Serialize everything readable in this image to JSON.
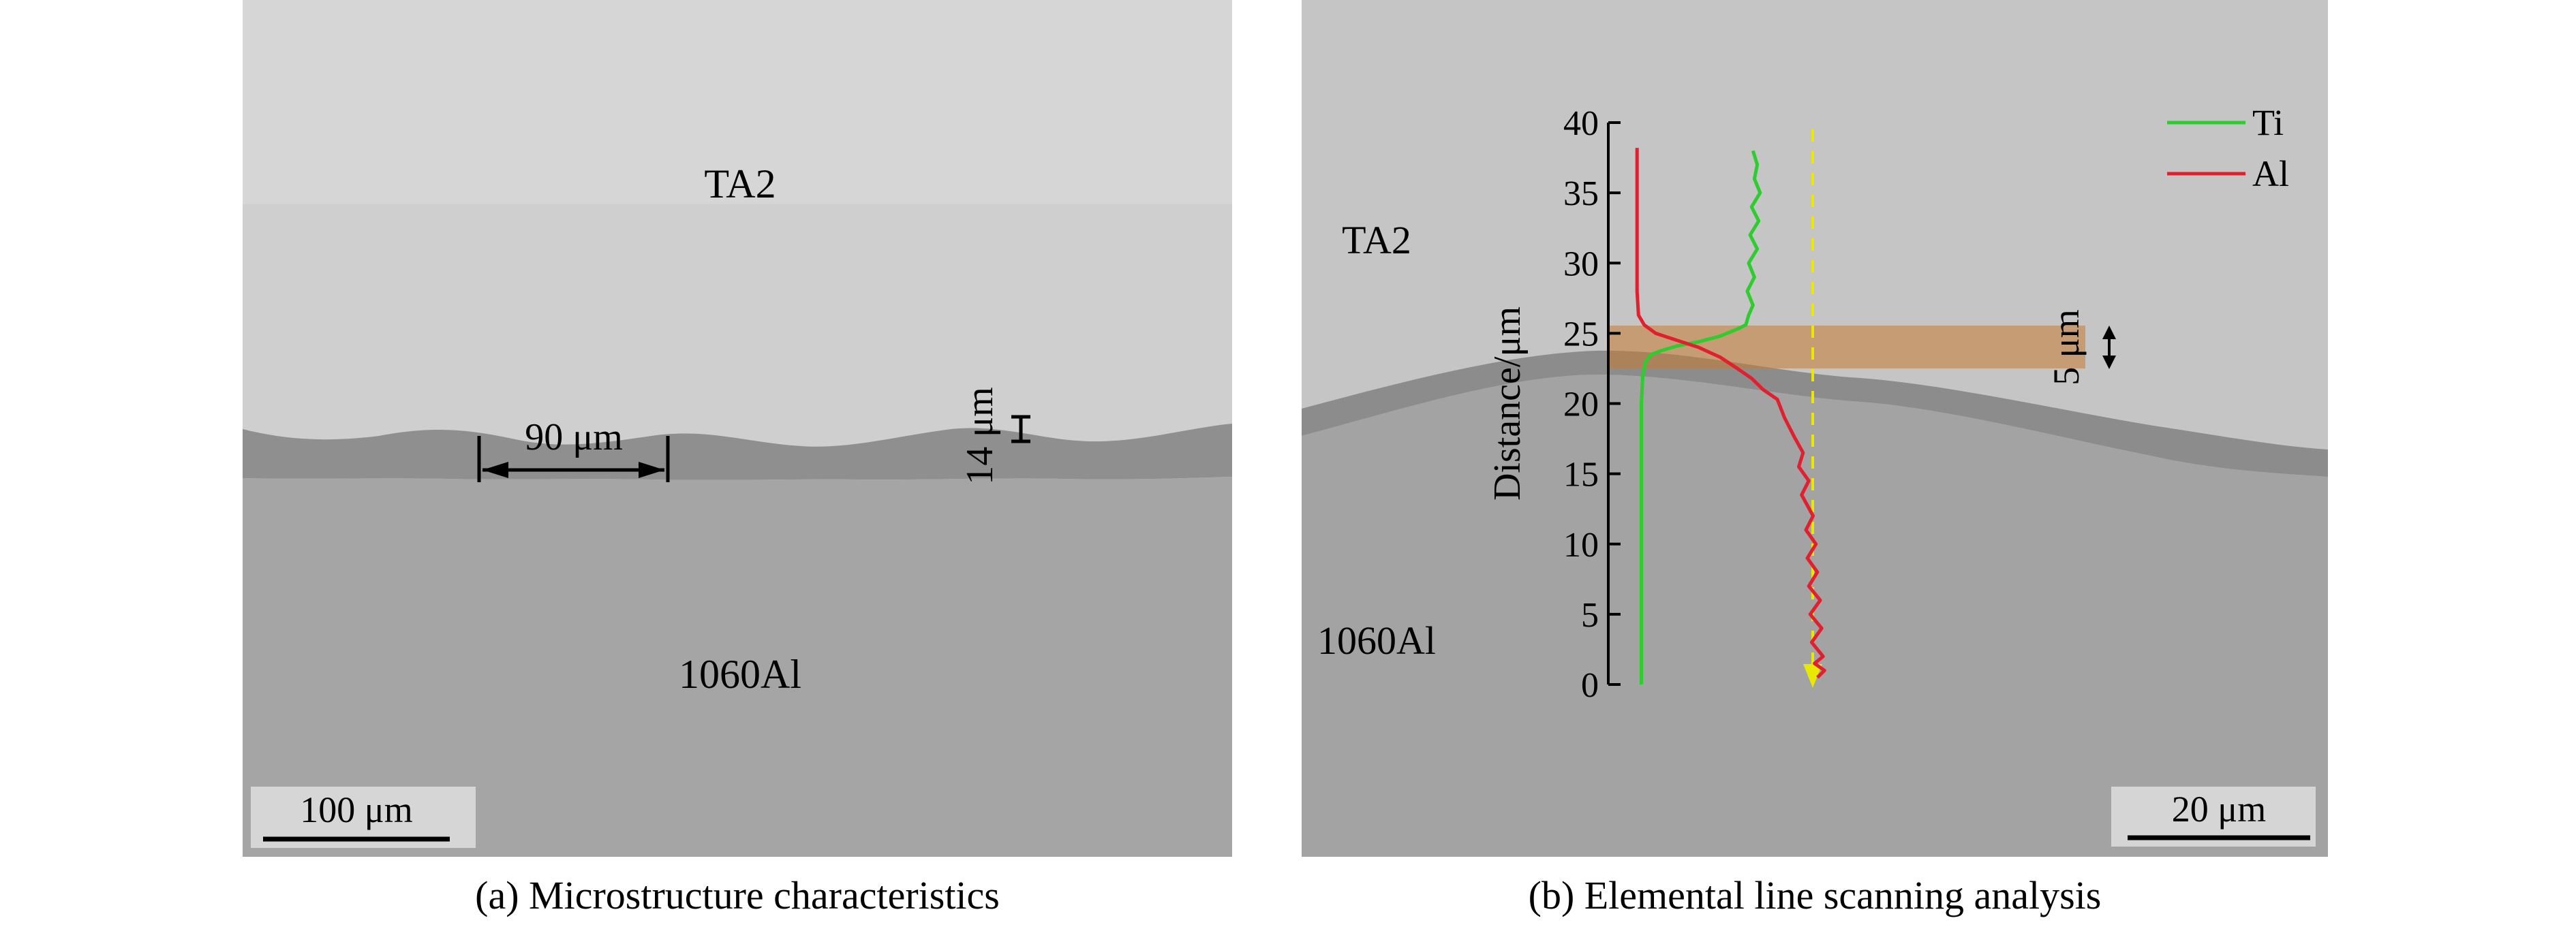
{
  "panel_a": {
    "label_top": "TA2",
    "label_bottom": "1060Al",
    "width_annotation": "90 μm",
    "thickness_annotation": "14 μm",
    "scale_bar": "100 μm",
    "caption": "(a) Microstructure characteristics"
  },
  "panel_b": {
    "label_top": "TA2",
    "label_bottom": "1060Al",
    "band_annotation": "5 μm",
    "scale_bar": "20 μm",
    "caption": "(b) Elemental line scanning analysis"
  },
  "chart_data": {
    "type": "line",
    "ylabel": "Distance/μm",
    "ylim": [
      0,
      40
    ],
    "yticks": [
      0,
      5,
      10,
      15,
      20,
      25,
      30,
      35,
      40
    ],
    "legend": "top-right",
    "colors": {
      "Ti": "#2ecc2e",
      "Al": "#e01f2f"
    },
    "series": [
      {
        "name": "Ti",
        "points": [
          [
            0.05,
            0
          ],
          [
            0.05,
            8
          ],
          [
            0.05,
            16
          ],
          [
            0.05,
            20
          ],
          [
            0.06,
            22
          ],
          [
            0.08,
            23
          ],
          [
            0.12,
            23.5
          ],
          [
            0.2,
            23.8
          ],
          [
            0.3,
            24.1
          ],
          [
            0.45,
            24.4
          ],
          [
            0.6,
            24.8
          ],
          [
            0.72,
            25.3
          ],
          [
            0.78,
            25.6
          ],
          [
            0.8,
            26.3
          ],
          [
            0.83,
            27
          ],
          [
            0.79,
            28
          ],
          [
            0.84,
            29
          ],
          [
            0.8,
            30
          ],
          [
            0.86,
            31
          ],
          [
            0.81,
            32
          ],
          [
            0.87,
            33
          ],
          [
            0.82,
            34
          ],
          [
            0.88,
            35
          ],
          [
            0.84,
            36
          ],
          [
            0.86,
            37
          ],
          [
            0.83,
            38
          ]
        ]
      },
      {
        "name": "Al",
        "points": [
          [
            0.02,
            38.2
          ],
          [
            0.02,
            37
          ],
          [
            0.02,
            32
          ],
          [
            0.02,
            28
          ],
          [
            0.03,
            26.3
          ],
          [
            0.07,
            25.6
          ],
          [
            0.15,
            25
          ],
          [
            0.3,
            24.5
          ],
          [
            0.45,
            24
          ],
          [
            0.6,
            23.3
          ],
          [
            0.72,
            22.5
          ],
          [
            0.82,
            21.8
          ],
          [
            0.9,
            21
          ],
          [
            1.0,
            20.3
          ],
          [
            1.05,
            19
          ],
          [
            1.12,
            17.6
          ],
          [
            1.18,
            16.5
          ],
          [
            1.15,
            15.5
          ],
          [
            1.22,
            14.5
          ],
          [
            1.17,
            13.5
          ],
          [
            1.25,
            12
          ],
          [
            1.2,
            11
          ],
          [
            1.27,
            10
          ],
          [
            1.21,
            9
          ],
          [
            1.28,
            8
          ],
          [
            1.22,
            7
          ],
          [
            1.3,
            6
          ],
          [
            1.23,
            5
          ],
          [
            1.31,
            4
          ],
          [
            1.24,
            3
          ],
          [
            1.32,
            2
          ],
          [
            1.26,
            1.5
          ],
          [
            1.33,
            1
          ],
          [
            1.28,
            0.5
          ]
        ]
      }
    ]
  }
}
